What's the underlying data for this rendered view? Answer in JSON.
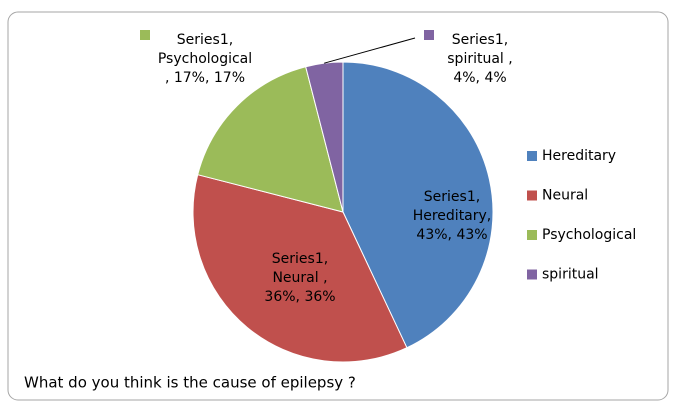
{
  "chart_data": {
    "type": "pie",
    "title": "What do you think is the cause of epilepsy ?",
    "series_name": "Series1",
    "categories": [
      "Hereditary",
      "Neural",
      "Psychological",
      "spiritual"
    ],
    "values": [
      43,
      36,
      17,
      4
    ],
    "value_labels": [
      [
        "Series1,",
        "Hereditary,",
        "43%, 43%"
      ],
      [
        "Series1,",
        "Neural  ,",
        "36%, 36%"
      ],
      [
        "Series1,",
        "Psychological",
        ", 17%, 17%"
      ],
      [
        "Series1,",
        "spiritual  ,",
        "4%, 4%"
      ]
    ],
    "colors": [
      "#4f81bd",
      "#c0504d",
      "#9bbb59",
      "#8064a2"
    ],
    "legend": "right"
  }
}
